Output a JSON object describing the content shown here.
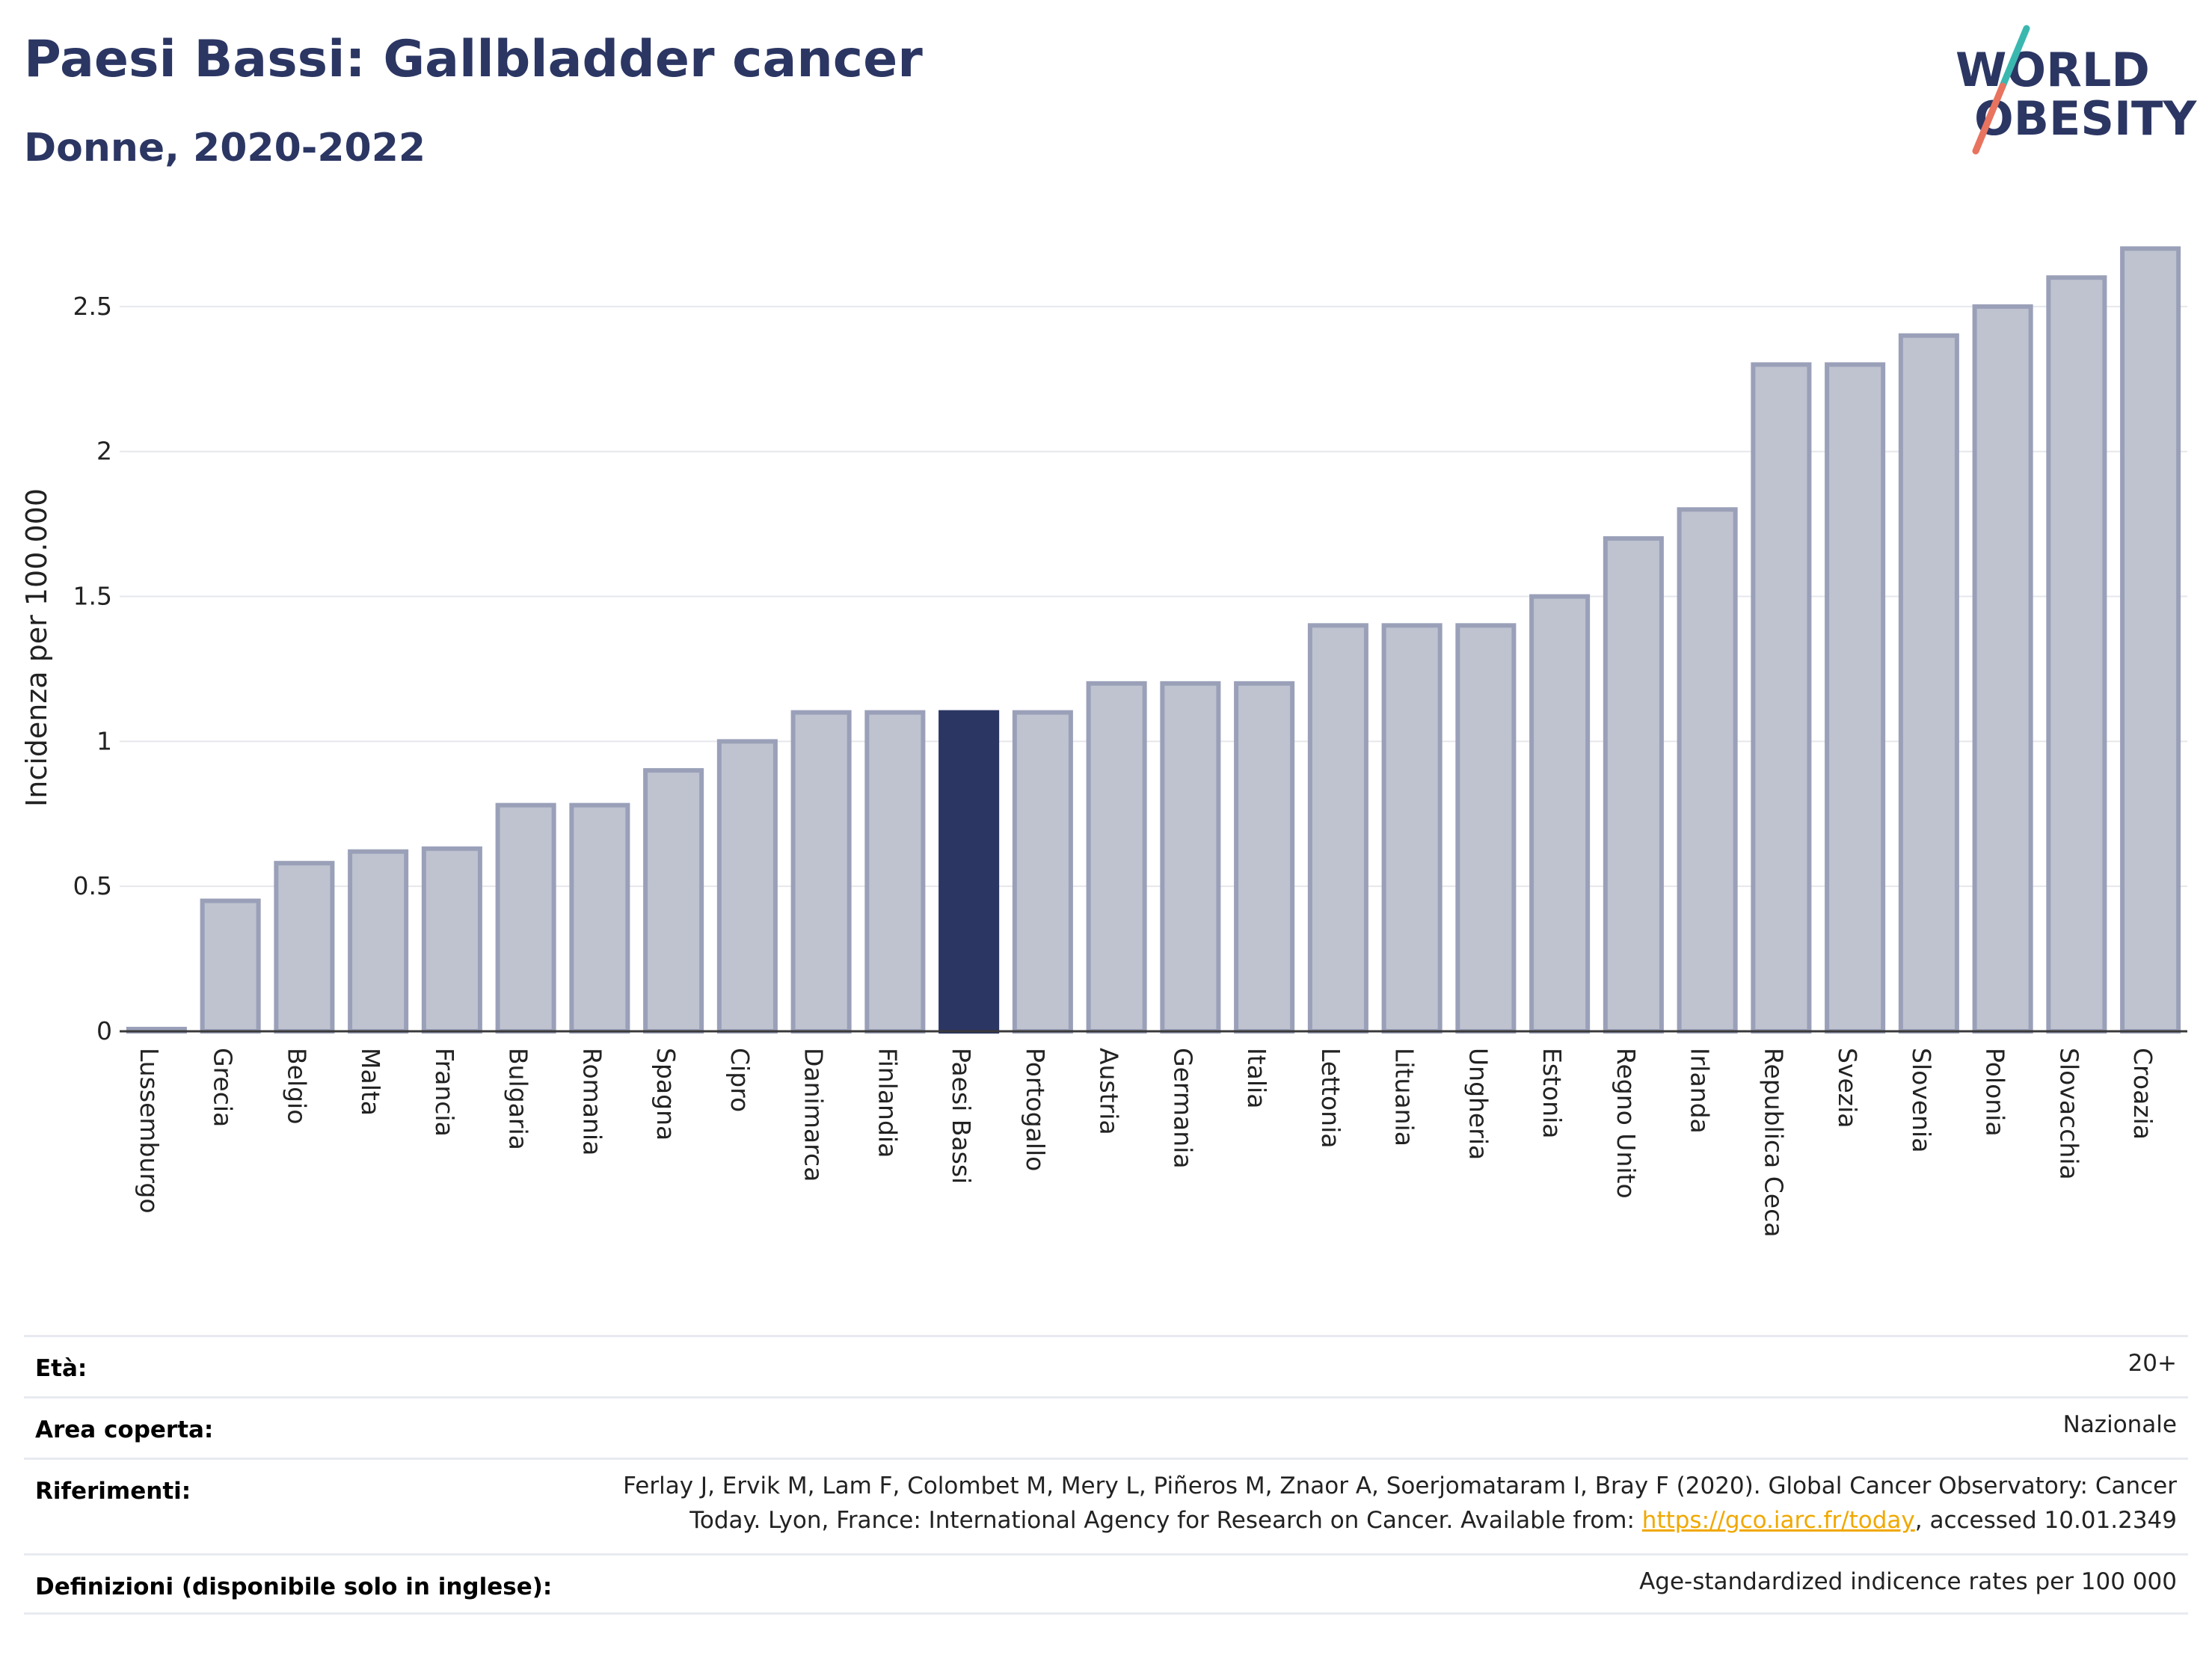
{
  "header": {
    "title": "Paesi Bassi: Gallbladder cancer",
    "subtitle": "Donne, 2020-2022"
  },
  "logo": {
    "line1": "WORLD",
    "line2": "OBESITY",
    "accent_teal": "#3ab8b0",
    "accent_coral": "#e8735f",
    "text_color": "#2b3663"
  },
  "chart_data": {
    "type": "bar",
    "ylabel": "Incidenza per 100.000",
    "ylim": [
      0,
      2.75
    ],
    "yticks": [
      0,
      0.5,
      1,
      1.5,
      2,
      2.5
    ],
    "grid": true,
    "highlight": "Paesi Bassi",
    "colors": {
      "bar": "#bfc3d0",
      "bar_border": "#9aa0b8",
      "highlight": "#2b3663"
    },
    "categories": [
      "Lussemburgo",
      "Grecia",
      "Belgio",
      "Malta",
      "Francia",
      "Bulgaria",
      "Romania",
      "Spagna",
      "Cipro",
      "Danimarca",
      "Finlandia",
      "Paesi Bassi",
      "Portogallo",
      "Austria",
      "Germania",
      "Italia",
      "Lettonia",
      "Lituania",
      "Ungheria",
      "Estonia",
      "Regno Unito",
      "Irlanda",
      "Republica Ceca",
      "Svezia",
      "Slovenia",
      "Polonia",
      "Slovacchia",
      "Croazia"
    ],
    "values": [
      0,
      0.45,
      0.58,
      0.62,
      0.63,
      0.78,
      0.78,
      0.9,
      1.0,
      1.1,
      1.1,
      1.1,
      1.1,
      1.2,
      1.2,
      1.2,
      1.4,
      1.4,
      1.4,
      1.5,
      1.7,
      1.8,
      2.3,
      2.3,
      2.4,
      2.5,
      2.6,
      2.7
    ]
  },
  "info": {
    "age_label": "Età:",
    "age_value": "20+",
    "area_label": "Area coperta:",
    "area_value": "Nazionale",
    "ref_label": "Riferimenti:",
    "ref_line1": "Ferlay J, Ervik M, Lam F, Colombet M, Mery L, Piñeros M, Znaor A, Soerjomataram I, Bray F (2020). Global Cancer Observatory: Cancer",
    "ref_line2_pre": "Today. Lyon, France: International Agency for Research on Cancer. Available from: ",
    "ref_link": "https://gco.iarc.fr/today",
    "ref_line2_post": ", accessed 10.01.2349",
    "def_label": "Definizioni (disponibile solo in inglese):",
    "def_value": "Age-standardized indicence rates per 100 000"
  }
}
